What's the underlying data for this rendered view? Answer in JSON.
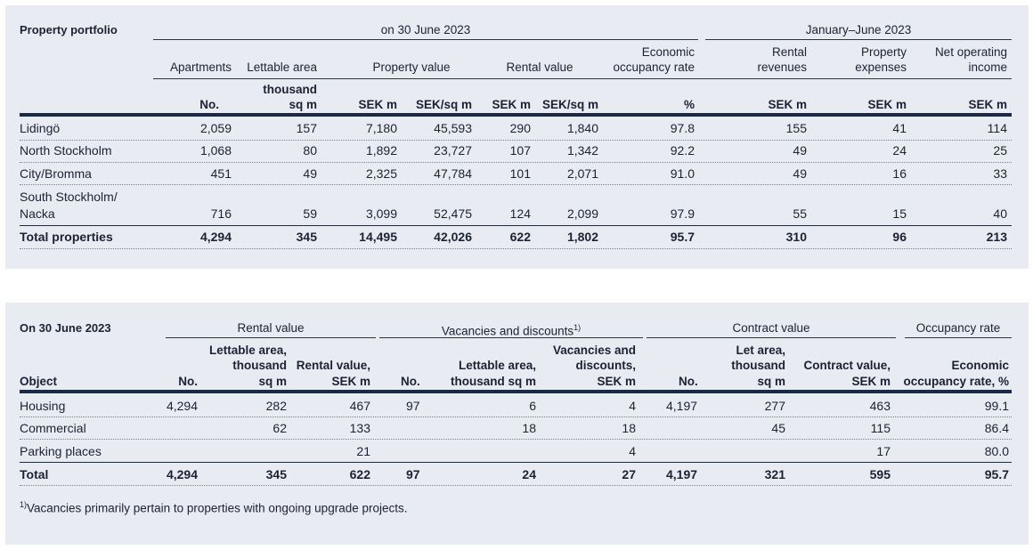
{
  "portfolio": {
    "title": "Property portfolio",
    "group_left": "on 30 June 2023",
    "group_right": "January–June 2023",
    "headers": {
      "apartments": "Apartments",
      "lettable_area": "Lettable area",
      "property_value": "Property value",
      "rental_value": "Rental value",
      "econ_1": "Economic",
      "econ_2": "occupancy rate",
      "rr_1": "Rental",
      "rr_2": "revenues",
      "pe_1": "Property",
      "pe_2": "expenses",
      "noi_1": "Net operating",
      "noi_2": "income"
    },
    "units": {
      "apt": "No.",
      "area_1": "thousand",
      "area_2": "sq m",
      "pv_sek": "SEK m",
      "pv_sqm": "SEK/sq m",
      "rv_sek": "SEK m",
      "rv_sqm": "SEK/sq m",
      "econ": "%",
      "rr": "SEK m",
      "pe": "SEK m",
      "noi": "SEK m"
    },
    "rows": [
      {
        "name": "Lidingö",
        "apt": "2,059",
        "area": "157",
        "pv_sek": "7,180",
        "pv_sqm": "45,593",
        "rv_sek": "290",
        "rv_sqm": "1,840",
        "econ": "97.8",
        "rr": "155",
        "pe": "41",
        "noi": "114"
      },
      {
        "name": "North Stockholm",
        "apt": "1,068",
        "area": "80",
        "pv_sek": "1,892",
        "pv_sqm": "23,727",
        "rv_sek": "107",
        "rv_sqm": "1,342",
        "econ": "92.2",
        "rr": "49",
        "pe": "24",
        "noi": "25"
      },
      {
        "name": "City/Bromma",
        "apt": "451",
        "area": "49",
        "pv_sek": "2,325",
        "pv_sqm": "47,784",
        "rv_sek": "101",
        "rv_sqm": "2,071",
        "econ": "91.0",
        "rr": "49",
        "pe": "16",
        "noi": "33"
      },
      {
        "name_1": "South Stockholm/",
        "name_2": "Nacka",
        "apt": "716",
        "area": "59",
        "pv_sek": "3,099",
        "pv_sqm": "52,475",
        "rv_sek": "124",
        "rv_sqm": "2,099",
        "econ": "97.9",
        "rr": "55",
        "pe": "15",
        "noi": "40"
      }
    ],
    "total": {
      "name": "Total properties",
      "apt": "4,294",
      "area": "345",
      "pv_sek": "14,495",
      "pv_sqm": "42,026",
      "rv_sek": "622",
      "rv_sqm": "1,802",
      "econ": "95.7",
      "rr": "310",
      "pe": "96",
      "noi": "213"
    }
  },
  "rental": {
    "title": "On 30 June 2023",
    "groups": {
      "rental_value": "Rental value",
      "vacancies": "Vacancies and discounts",
      "vacancies_sup": "1)",
      "contract": "Contract value",
      "occupancy": "Occupancy rate"
    },
    "headers": {
      "object": "Object",
      "rv_no": "No.",
      "rv_area_1": "Lettable area,",
      "rv_area_2": "thousand",
      "rv_area_3": "sq m",
      "rv_val_1": "Rental value,",
      "rv_val_2": "SEK m",
      "vac_no": "No.",
      "vac_area_1": "Lettable area,",
      "vac_area_2": "thousand sq m",
      "vac_sek_1": "Vacancies and",
      "vac_sek_2": "discounts,",
      "vac_sek_3": "SEK m",
      "con_no": "No.",
      "con_area_1": "Let area,",
      "con_area_2": "thousand",
      "con_area_3": "sq m",
      "con_val_1": "Contract value,",
      "con_val_2": "SEK m",
      "occ_1": "Economic",
      "occ_2": "occupancy rate, %"
    },
    "rows": [
      {
        "name": "Housing",
        "rv_no": "4,294",
        "rv_area": "282",
        "rv_val": "467",
        "vac_no": "97",
        "vac_area": "6",
        "vac_sek": "4",
        "con_no": "4,197",
        "con_area": "277",
        "con_val": "463",
        "occ": "99.1"
      },
      {
        "name": "Commercial",
        "rv_no": "",
        "rv_area": "62",
        "rv_val": "133",
        "vac_no": "",
        "vac_area": "18",
        "vac_sek": "18",
        "con_no": "",
        "con_area": "45",
        "con_val": "115",
        "occ": "86.4"
      },
      {
        "name": "Parking places",
        "rv_no": "",
        "rv_area": "",
        "rv_val": "21",
        "vac_no": "",
        "vac_area": "",
        "vac_sek": "4",
        "con_no": "",
        "con_area": "",
        "con_val": "17",
        "occ": "80.0"
      }
    ],
    "total": {
      "name": "Total",
      "rv_no": "4,294",
      "rv_area": "345",
      "rv_val": "622",
      "vac_no": "97",
      "vac_area": "24",
      "vac_sek": "27",
      "con_no": "4,197",
      "con_area": "321",
      "con_val": "595",
      "occ": "95.7"
    },
    "footnote_sup": "1)",
    "footnote": "Vacancies primarily pertain to properties with ongoing upgrade projects."
  }
}
